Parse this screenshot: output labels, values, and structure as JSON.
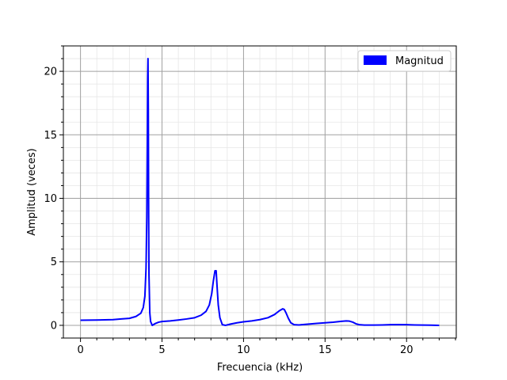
{
  "chart_data": {
    "type": "line",
    "title": "",
    "xlabel": "Frecuencia (kHz)",
    "ylabel": "Amplitud (veces)",
    "xlim": [
      -1.05,
      23.05
    ],
    "ylim": [
      -1.0,
      22.0
    ],
    "xticks": [
      0,
      5,
      10,
      15,
      20
    ],
    "yticks": [
      0,
      5,
      10,
      15,
      20
    ],
    "xtick_labels": [
      "0",
      "5",
      "10",
      "15",
      "20"
    ],
    "ytick_labels": [
      "0",
      "5",
      "10",
      "15",
      "20"
    ],
    "grid": true,
    "minor_grid": true,
    "legend_position": "top-right",
    "series": [
      {
        "name": "Magnitud",
        "color": "#0000ff",
        "x": [
          0,
          1,
          2,
          2.5,
          3,
          3.4,
          3.7,
          3.85,
          3.95,
          4.02,
          4.07,
          4.1,
          4.12,
          4.14,
          4.16,
          4.18,
          4.2,
          4.25,
          4.3,
          4.4,
          4.6,
          4.8,
          5,
          5.5,
          6,
          6.5,
          7,
          7.4,
          7.7,
          7.9,
          8.05,
          8.15,
          8.25,
          8.32,
          8.38,
          8.45,
          8.55,
          8.7,
          8.9,
          9.2,
          9.6,
          10,
          10.5,
          11,
          11.5,
          11.9,
          12.2,
          12.4,
          12.5,
          12.6,
          12.75,
          12.9,
          13.1,
          13.4,
          14,
          14.5,
          15,
          15.5,
          16,
          16.3,
          16.5,
          16.7,
          16.9,
          17.1,
          17.4,
          18,
          18.5,
          19,
          19.5,
          20,
          20.5,
          21,
          21.5,
          22
        ],
        "y": [
          0.4,
          0.42,
          0.45,
          0.5,
          0.55,
          0.7,
          0.95,
          1.4,
          2.3,
          4.5,
          8.5,
          14.5,
          19.5,
          21.0,
          17.0,
          9.0,
          4.0,
          1.0,
          0.3,
          0.0,
          0.15,
          0.25,
          0.3,
          0.35,
          0.42,
          0.5,
          0.6,
          0.8,
          1.1,
          1.6,
          2.5,
          3.5,
          4.3,
          4.3,
          3.0,
          1.6,
          0.6,
          0.05,
          0.0,
          0.1,
          0.2,
          0.28,
          0.35,
          0.45,
          0.6,
          0.85,
          1.15,
          1.3,
          1.25,
          1.0,
          0.55,
          0.2,
          0.05,
          0.03,
          0.1,
          0.15,
          0.2,
          0.25,
          0.32,
          0.35,
          0.33,
          0.25,
          0.12,
          0.05,
          0.02,
          0.02,
          0.03,
          0.05,
          0.06,
          0.05,
          0.03,
          0.02,
          0.01,
          0.0
        ]
      }
    ]
  },
  "legend": {
    "label": "Magnitud",
    "color": "#0000ff"
  }
}
